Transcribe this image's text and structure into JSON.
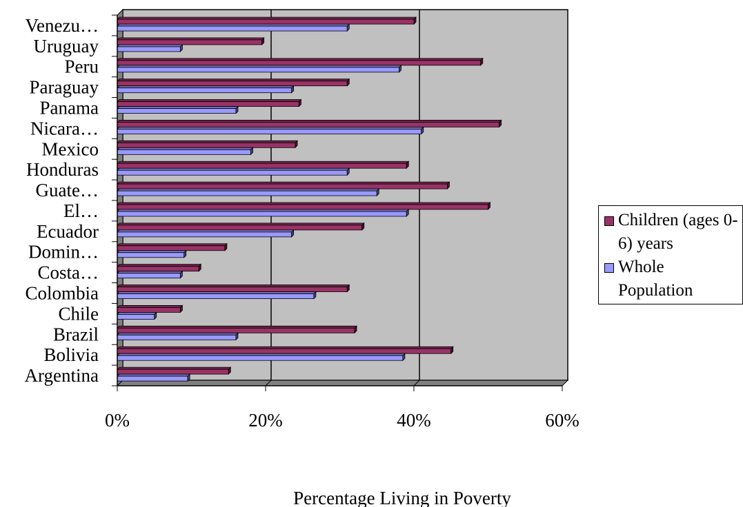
{
  "chart_data": {
    "type": "bar",
    "orientation": "horizontal",
    "three_d": true,
    "categories": [
      "Argentina",
      "Bolivia",
      "Brazil",
      "Chile",
      "Colombia",
      "Costa…",
      "Domin…",
      "Ecuador",
      "El…",
      "Guate…",
      "Honduras",
      "Mexico",
      "Nicara…",
      "Panama",
      "Paraguay",
      "Peru",
      "Uruguay",
      "Venezu…"
    ],
    "series": [
      {
        "name": "Children (ages 0-6) years",
        "color": "#993366",
        "values": [
          15,
          45,
          32,
          8.5,
          31,
          11,
          14.5,
          33,
          50,
          44.5,
          39,
          24,
          51.5,
          24.5,
          31,
          49,
          19.5,
          40
        ]
      },
      {
        "name": "Whole Population",
        "color": "#9999ff",
        "values": [
          9.5,
          38.5,
          16,
          5,
          26.5,
          8.5,
          9,
          23.5,
          39,
          35,
          31,
          18,
          41,
          16,
          23.5,
          38,
          8.5,
          31
        ]
      }
    ],
    "x_ticks": [
      "0%",
      "20%",
      "40%",
      "60%"
    ],
    "xlim": [
      0,
      60
    ],
    "xlabel": "Percentage Living in Poverty",
    "ylabel": "",
    "title": "",
    "grid": true,
    "legend_position": "right",
    "plot_background": "#c0c0c0"
  }
}
